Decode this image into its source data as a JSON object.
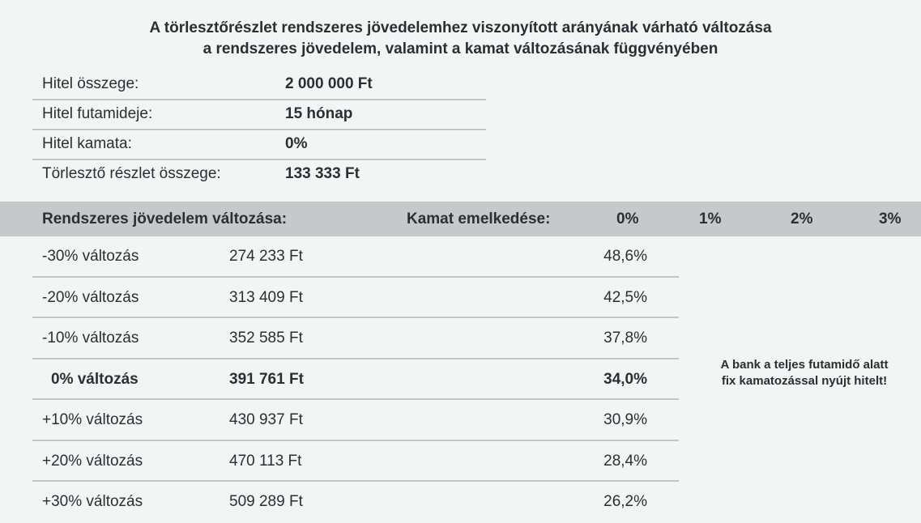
{
  "title": {
    "line1": "A törlesztőrészlet rendszeres jövedelemhez viszonyított arányának várható változása",
    "line2": "a rendszeres jövedelem, valamint a kamat változásának függvényében"
  },
  "loan_info": [
    {
      "label": "Hitel összege:",
      "value": "2 000 000 Ft"
    },
    {
      "label": "Hitel futamideje:",
      "value": "15 hónap"
    },
    {
      "label": "Hitel kamata:",
      "value": "0%"
    },
    {
      "label": "Törlesztő részlet összege:",
      "value": "133 333 Ft"
    }
  ],
  "table_header": {
    "income_change": "Rendszeres jövedelem változása:",
    "rate_increase": "Kamat emelkedése:",
    "rate_columns": [
      "0%",
      "1%",
      "2%",
      "3%"
    ]
  },
  "rows": [
    {
      "label": "-30% változás",
      "income": "274 233 Ft",
      "ratio_0": "48,6%",
      "emphasis": false
    },
    {
      "label": "-20% változás",
      "income": "313 409 Ft",
      "ratio_0": "42,5%",
      "emphasis": false
    },
    {
      "label": "-10% változás",
      "income": "352 585 Ft",
      "ratio_0": "37,8%",
      "emphasis": false
    },
    {
      "label": "0% változás",
      "income": "391 761 Ft",
      "ratio_0": "34,0%",
      "emphasis": true
    },
    {
      "label": "+10% változás",
      "income": "430 937 Ft",
      "ratio_0": "30,9%",
      "emphasis": false
    },
    {
      "label": "+20% változás",
      "income": "470 113 Ft",
      "ratio_0": "28,4%",
      "emphasis": false
    },
    {
      "label": "+30% változás",
      "income": "509 289 Ft",
      "ratio_0": "26,2%",
      "emphasis": false
    }
  ],
  "note": {
    "line1": "A bank a teljes futamidő alatt",
    "line2": "fix kamatozással nyújt hitelt!"
  },
  "colors": {
    "background": "#f3f4f4",
    "header_band": "#c6c9cc",
    "divider": "#c3c6c9",
    "text": "#2b2e34"
  }
}
